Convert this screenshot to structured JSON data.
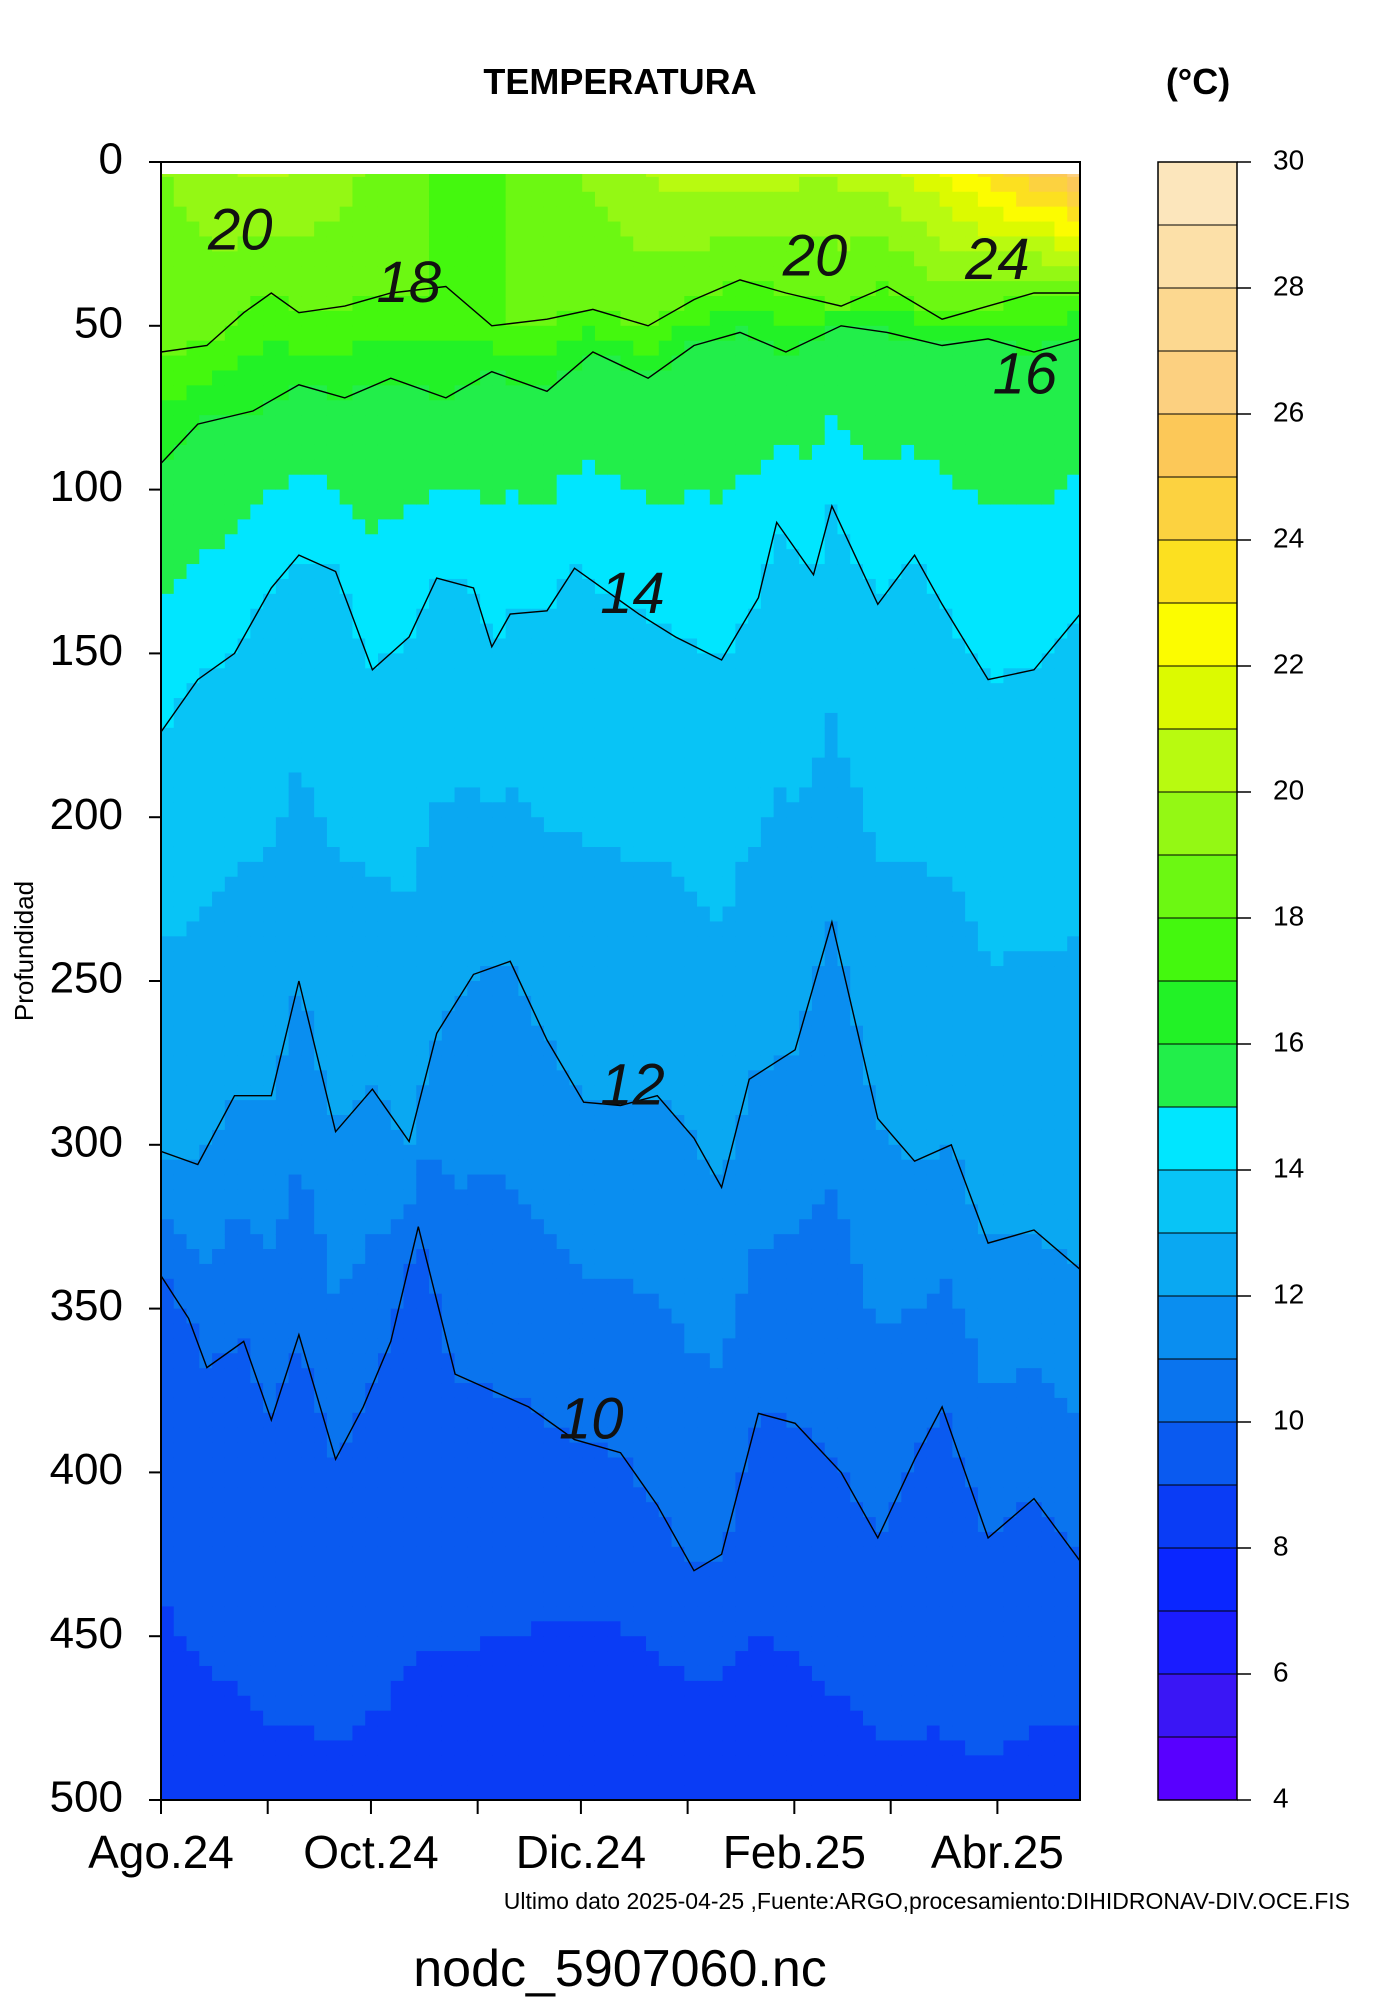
{
  "chart_data": {
    "type": "heatmap",
    "title": "TEMPERATURA",
    "unit_label": "(°C)",
    "ylabel": "Profundidad",
    "xlabel": "",
    "source_note": "Ultimo dato 2025-04-25 ,Fuente:ARGO,procesamiento:DIHIDRONAV-DIV.OCE.FIS",
    "file_name": "nodc_5907060.nc",
    "y_axis": {
      "ticks": [
        0,
        50,
        100,
        150,
        200,
        250,
        300,
        350,
        400,
        450,
        500
      ],
      "range": [
        500,
        0
      ],
      "inverted": true
    },
    "x_axis": {
      "tick_labels": [
        "Ago.24",
        "Oct.24",
        "Dic.24",
        "Feb.25",
        "Abr.25"
      ],
      "ticks": [
        "2024-08-01",
        "2024-09-01",
        "2024-10-01",
        "2024-11-01",
        "2024-12-01",
        "2025-01-01",
        "2025-02-01",
        "2025-03-01",
        "2025-04-01"
      ],
      "range": [
        "2024-08-01",
        "2025-04-25"
      ]
    },
    "colorbar": {
      "ticks": [
        4,
        6,
        8,
        10,
        12,
        14,
        16,
        18,
        20,
        22,
        24,
        26,
        28,
        30
      ],
      "range": [
        4,
        30
      ],
      "level_step": 1,
      "colors": [
        "#5800ff",
        "#3a16f5",
        "#1a1cff",
        "#0a26ff",
        "#0a3cf5",
        "#0a5af0",
        "#0a74ee",
        "#0a8ef0",
        "#0aa8f2",
        "#08c4f6",
        "#00e6ff",
        "#22ee4a",
        "#22f226",
        "#44f80e",
        "#6cf812",
        "#94f814",
        "#b8fa10",
        "#dcfa00",
        "#fcfc00",
        "#fce020",
        "#fcd240",
        "#fcc858",
        "#fcd080",
        "#fcd890",
        "#fce0a8",
        "#fce6bc"
      ]
    },
    "contour_labels": [
      {
        "text": "20",
        "date": "2024-08-24",
        "depth": 22
      },
      {
        "text": "18",
        "date": "2024-10-12",
        "depth": 38
      },
      {
        "text": "20",
        "date": "2025-02-07",
        "depth": 30
      },
      {
        "text": "24",
        "date": "2025-04-01",
        "depth": 31
      },
      {
        "text": "16",
        "date": "2025-04-09",
        "depth": 66
      },
      {
        "text": "14",
        "date": "2024-12-16",
        "depth": 133
      },
      {
        "text": "12",
        "date": "2024-12-16",
        "depth": 283
      },
      {
        "text": "10",
        "date": "2024-12-04",
        "depth": 385
      }
    ],
    "isotherms": [
      {
        "level": 18,
        "depth_points": [
          [
            0,
            58
          ],
          [
            0.05,
            56
          ],
          [
            0.09,
            46
          ],
          [
            0.12,
            40
          ],
          [
            0.15,
            46
          ],
          [
            0.2,
            44
          ],
          [
            0.25,
            40
          ],
          [
            0.31,
            38
          ],
          [
            0.36,
            50
          ],
          [
            0.42,
            48
          ],
          [
            0.47,
            45
          ],
          [
            0.53,
            50
          ],
          [
            0.58,
            42
          ],
          [
            0.63,
            36
          ],
          [
            0.68,
            40
          ],
          [
            0.74,
            44
          ],
          [
            0.79,
            38
          ],
          [
            0.85,
            48
          ],
          [
            0.9,
            44
          ],
          [
            0.95,
            40
          ],
          [
            1,
            40
          ]
        ]
      },
      {
        "level": 16,
        "depth_points": [
          [
            0,
            92
          ],
          [
            0.04,
            80
          ],
          [
            0.1,
            76
          ],
          [
            0.15,
            68
          ],
          [
            0.2,
            72
          ],
          [
            0.25,
            66
          ],
          [
            0.31,
            72
          ],
          [
            0.36,
            64
          ],
          [
            0.42,
            70
          ],
          [
            0.47,
            58
          ],
          [
            0.53,
            66
          ],
          [
            0.58,
            56
          ],
          [
            0.63,
            52
          ],
          [
            0.68,
            58
          ],
          [
            0.74,
            50
          ],
          [
            0.79,
            52
          ],
          [
            0.85,
            56
          ],
          [
            0.9,
            54
          ],
          [
            0.95,
            58
          ],
          [
            1,
            54
          ]
        ]
      },
      {
        "level": 14,
        "depth_points": [
          [
            0,
            174
          ],
          [
            0.04,
            158
          ],
          [
            0.08,
            150
          ],
          [
            0.12,
            130
          ],
          [
            0.15,
            120
          ],
          [
            0.19,
            125
          ],
          [
            0.23,
            155
          ],
          [
            0.27,
            145
          ],
          [
            0.3,
            127
          ],
          [
            0.34,
            130
          ],
          [
            0.36,
            148
          ],
          [
            0.38,
            138
          ],
          [
            0.42,
            137
          ],
          [
            0.45,
            124
          ],
          [
            0.49,
            132
          ],
          [
            0.52,
            138
          ],
          [
            0.56,
            145
          ],
          [
            0.61,
            152
          ],
          [
            0.65,
            133
          ],
          [
            0.67,
            110
          ],
          [
            0.71,
            126
          ],
          [
            0.73,
            105
          ],
          [
            0.78,
            135
          ],
          [
            0.82,
            120
          ],
          [
            0.85,
            135
          ],
          [
            0.9,
            158
          ],
          [
            0.95,
            155
          ],
          [
            1,
            138
          ]
        ]
      },
      {
        "level": 12,
        "depth_points": [
          [
            0,
            302
          ],
          [
            0.04,
            306
          ],
          [
            0.08,
            285
          ],
          [
            0.12,
            285
          ],
          [
            0.15,
            250
          ],
          [
            0.19,
            296
          ],
          [
            0.23,
            283
          ],
          [
            0.27,
            299
          ],
          [
            0.3,
            266
          ],
          [
            0.34,
            248
          ],
          [
            0.38,
            244
          ],
          [
            0.42,
            268
          ],
          [
            0.46,
            287
          ],
          [
            0.5,
            288
          ],
          [
            0.54,
            285
          ],
          [
            0.58,
            298
          ],
          [
            0.61,
            313
          ],
          [
            0.64,
            280
          ],
          [
            0.69,
            271
          ],
          [
            0.73,
            232
          ],
          [
            0.78,
            292
          ],
          [
            0.82,
            305
          ],
          [
            0.86,
            300
          ],
          [
            0.9,
            330
          ],
          [
            0.95,
            326
          ],
          [
            1,
            338
          ]
        ]
      },
      {
        "level": 10,
        "depth_points": [
          [
            0,
            340
          ],
          [
            0.03,
            353
          ],
          [
            0.05,
            368
          ],
          [
            0.09,
            360
          ],
          [
            0.12,
            384
          ],
          [
            0.15,
            358
          ],
          [
            0.19,
            396
          ],
          [
            0.22,
            380
          ],
          [
            0.25,
            360
          ],
          [
            0.28,
            325
          ],
          [
            0.32,
            370
          ],
          [
            0.36,
            375
          ],
          [
            0.4,
            380
          ],
          [
            0.45,
            390
          ],
          [
            0.5,
            394
          ],
          [
            0.54,
            410
          ],
          [
            0.58,
            430
          ],
          [
            0.61,
            425
          ],
          [
            0.65,
            382
          ],
          [
            0.69,
            385
          ],
          [
            0.74,
            400
          ],
          [
            0.78,
            420
          ],
          [
            0.82,
            396
          ],
          [
            0.85,
            380
          ],
          [
            0.9,
            420
          ],
          [
            0.95,
            408
          ],
          [
            1,
            427
          ]
        ]
      }
    ]
  }
}
